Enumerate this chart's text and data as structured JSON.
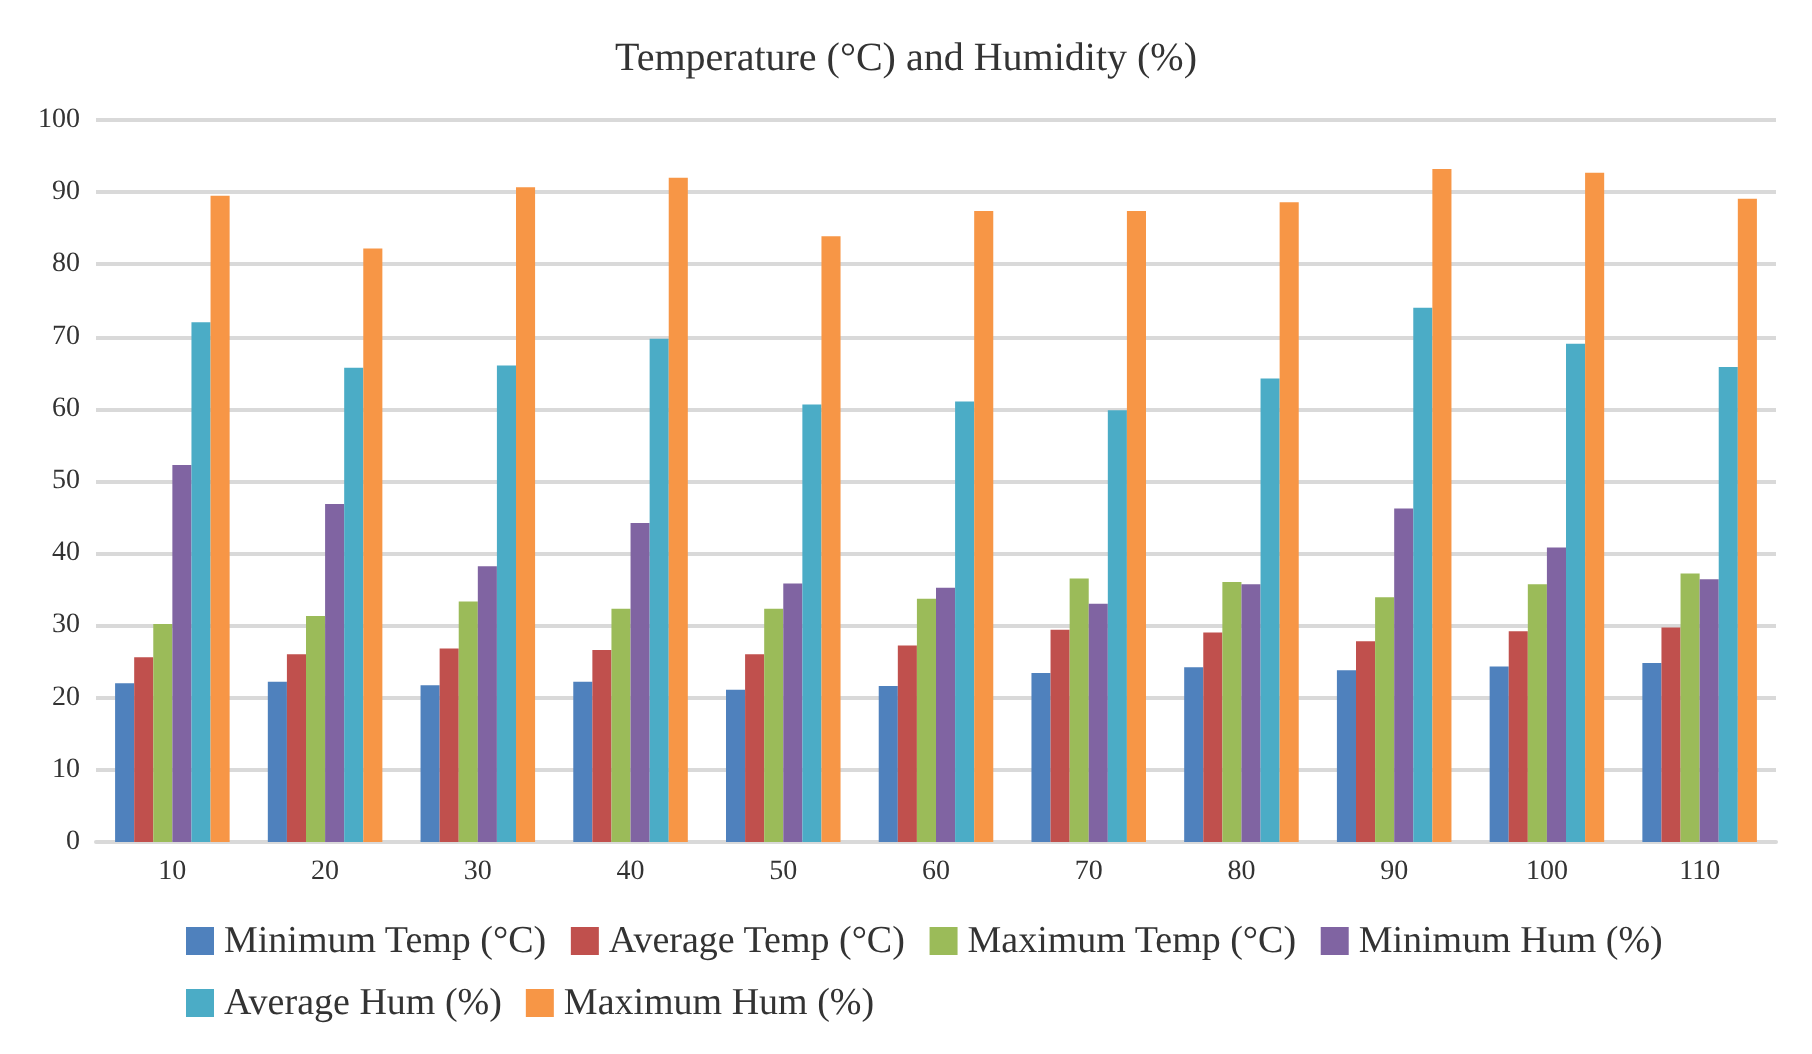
{
  "chart_data": {
    "type": "bar",
    "title": "Temperature (°C) and Humidity (%)",
    "categories": [
      "10",
      "20",
      "30",
      "40",
      "50",
      "60",
      "70",
      "80",
      "90",
      "100",
      "110"
    ],
    "series": [
      {
        "name": "Minimum Temp (°C)",
        "color": "#4f81bd",
        "values": [
          22,
          22.2,
          21.7,
          22.2,
          21.1,
          21.6,
          23.4,
          24.2,
          23.8,
          24.3,
          24.8
        ]
      },
      {
        "name": "Average Temp (°C)",
        "color": "#c0504d",
        "values": [
          25.6,
          26,
          26.8,
          26.6,
          26,
          27.2,
          29.4,
          29,
          27.8,
          29.2,
          29.7
        ]
      },
      {
        "name": "Maximum Temp (°C)",
        "color": "#9bbb59",
        "values": [
          30.2,
          31.3,
          33.3,
          32.3,
          32.3,
          33.7,
          36.5,
          36,
          33.9,
          35.7,
          37.2
        ]
      },
      {
        "name": "Minimum Hum (%)",
        "color": "#8064a2",
        "values": [
          52.2,
          46.8,
          38.2,
          44.2,
          35.8,
          35.2,
          33,
          35.7,
          46.2,
          40.8,
          36.4
        ]
      },
      {
        "name": "Average Hum (%)",
        "color": "#4bacc6",
        "values": [
          72,
          65.7,
          66,
          69.7,
          60.6,
          61,
          59.8,
          64.2,
          74,
          69,
          65.8
        ]
      },
      {
        "name": "Maximum Hum (%)",
        "color": "#f79646",
        "values": [
          89.5,
          82.2,
          90.7,
          92,
          83.9,
          87.4,
          87.4,
          88.6,
          93.2,
          92.7,
          89.1
        ]
      }
    ],
    "ylim": [
      0,
      100
    ],
    "yticks": [
      0,
      10,
      20,
      30,
      40,
      50,
      60,
      70,
      80,
      90,
      100
    ],
    "grid": "y",
    "legend": "bottom"
  }
}
